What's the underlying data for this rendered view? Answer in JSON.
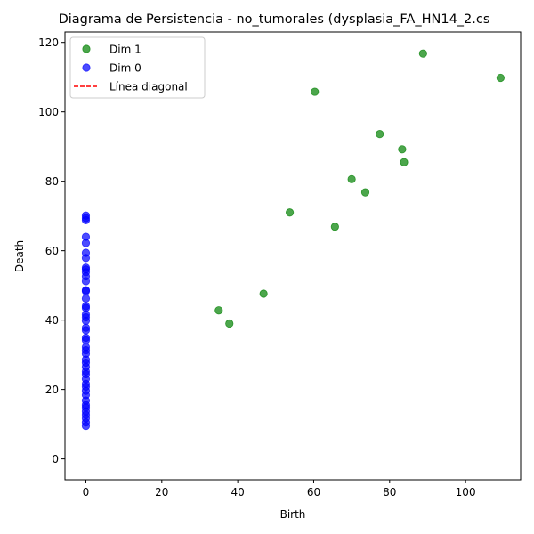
{
  "chart_data": {
    "type": "scatter",
    "title": "Diagrama de Persistencia - no_tumorales (dysplasia_FA_HN14_2.cs",
    "xlabel": "Birth",
    "ylabel": "Death",
    "xlim": [
      -5.5,
      114.5
    ],
    "ylim": [
      -6,
      123
    ],
    "x_ticks": [
      0,
      20,
      40,
      60,
      80,
      100
    ],
    "y_ticks": [
      0,
      20,
      40,
      60,
      80,
      100,
      120
    ],
    "grid": false,
    "legend_position": "top-left",
    "series": [
      {
        "name": "Dim 1",
        "color": "#008000",
        "points": [
          [
            35.0,
            42.8
          ],
          [
            37.8,
            39.0
          ],
          [
            46.8,
            47.6
          ],
          [
            53.7,
            71.0
          ],
          [
            60.3,
            105.8
          ],
          [
            65.6,
            66.9
          ],
          [
            70.0,
            80.6
          ],
          [
            73.6,
            76.8
          ],
          [
            77.4,
            93.6
          ],
          [
            83.3,
            89.2
          ],
          [
            83.8,
            85.5
          ],
          [
            88.8,
            116.8
          ],
          [
            109.2,
            109.8
          ]
        ]
      },
      {
        "name": "Dim 0",
        "color": "#0000ff",
        "points": [
          [
            0,
            9.5
          ],
          [
            0,
            10.5
          ],
          [
            0,
            11.7
          ],
          [
            0,
            12.7
          ],
          [
            0,
            13.7
          ],
          [
            0,
            14.8
          ],
          [
            0,
            15.5
          ],
          [
            0,
            16.8
          ],
          [
            0,
            18.4
          ],
          [
            0,
            19.6
          ],
          [
            0,
            20.8
          ],
          [
            0,
            21.6
          ],
          [
            0,
            23.0
          ],
          [
            0,
            24.4
          ],
          [
            0,
            25.2
          ],
          [
            0,
            26.5
          ],
          [
            0,
            27.7
          ],
          [
            0,
            28.6
          ],
          [
            0,
            30.3
          ],
          [
            0,
            31.3
          ],
          [
            0,
            32.2
          ],
          [
            0,
            34.2
          ],
          [
            0,
            34.9
          ],
          [
            0,
            37.1
          ],
          [
            0,
            37.8
          ],
          [
            0,
            39.8
          ],
          [
            0,
            40.8
          ],
          [
            0,
            41.6
          ],
          [
            0,
            43.5
          ],
          [
            0,
            44.0
          ],
          [
            0,
            46.2
          ],
          [
            0,
            48.3
          ],
          [
            0,
            48.6
          ],
          [
            0,
            51.2
          ],
          [
            0,
            52.6
          ],
          [
            0,
            53.8
          ],
          [
            0,
            54.6
          ],
          [
            0,
            55.1
          ],
          [
            0,
            57.9
          ],
          [
            0,
            59.4
          ],
          [
            0,
            62.2
          ],
          [
            0,
            64.0
          ],
          [
            0,
            68.8
          ],
          [
            0,
            69.4
          ],
          [
            0,
            70.1
          ]
        ]
      },
      {
        "name": "Línea diagonal",
        "color": "#ff0000",
        "style": "dashed",
        "points": []
      }
    ]
  }
}
